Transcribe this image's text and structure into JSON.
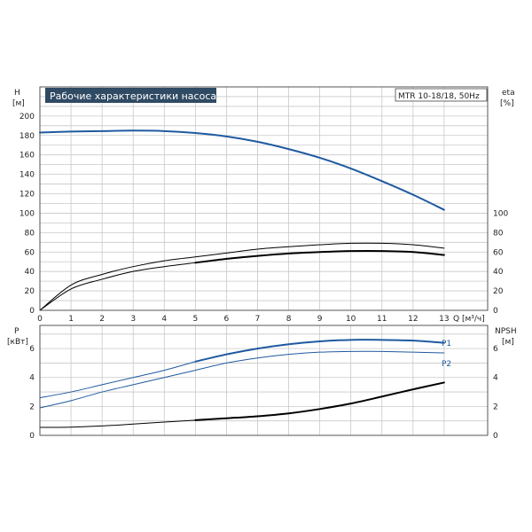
{
  "chart_data": {
    "type": "line",
    "title": "Рабочие характеристики насоса",
    "model": "MTR 10-18/18, 50Hz",
    "x": {
      "label": "Q [м³/ч]",
      "range": [
        0,
        14.4
      ],
      "ticks": [
        0,
        1,
        2,
        3,
        4,
        5,
        6,
        7,
        8,
        9,
        10,
        11,
        12,
        13
      ]
    },
    "top_panel": {
      "left_axis": {
        "label": "H",
        "unit": "[м]",
        "range": [
          0,
          230
        ],
        "ticks": [
          0,
          20,
          40,
          60,
          80,
          100,
          120,
          140,
          160,
          180,
          200
        ]
      },
      "right_axis": {
        "label": "eta",
        "unit": "[%]",
        "range": [
          0,
          100
        ],
        "ticks": [
          0,
          20,
          40,
          60,
          80,
          100
        ]
      },
      "series": [
        {
          "axis": "left",
          "color": "#1f5aa0",
          "width": 2,
          "x": [
            0,
            1,
            2,
            3,
            4,
            5,
            6,
            7,
            8,
            9,
            10,
            11,
            12,
            13
          ],
          "y": [
            183,
            184,
            184.5,
            185,
            184.5,
            182.5,
            179,
            173.5,
            166,
            157,
            146,
            133,
            119,
            103.5
          ]
        },
        {
          "axis": "right",
          "color": "#000000",
          "width": 1,
          "x": [
            0,
            1,
            2,
            3,
            4,
            5,
            6,
            7,
            8,
            9,
            10,
            11,
            12,
            13
          ],
          "y": [
            0,
            26,
            37,
            45,
            51,
            55,
            59,
            63,
            65.5,
            67.5,
            69,
            69,
            67.5,
            64
          ]
        },
        {
          "axis": "right",
          "color": "#000000",
          "width": 1,
          "x": [
            0,
            1,
            2,
            3,
            4,
            5
          ],
          "y": [
            0,
            22,
            32,
            40,
            45,
            49
          ]
        },
        {
          "axis": "right",
          "color": "#000000",
          "width": 2,
          "x": [
            5,
            6,
            7,
            8,
            9,
            10,
            11,
            12,
            13
          ],
          "y": [
            49,
            53,
            56,
            58.5,
            60,
            61,
            61,
            60,
            57
          ]
        }
      ]
    },
    "bottom_panel": {
      "left_axis": {
        "label": "P",
        "unit": "[кВт]",
        "range": [
          0,
          7.6
        ],
        "ticks": [
          0,
          2,
          4,
          6
        ]
      },
      "right_axis": {
        "label": "NPSH",
        "unit": "[м]",
        "range": [
          0,
          7.6
        ],
        "ticks": [
          0,
          2,
          4,
          6
        ]
      },
      "series": [
        {
          "name": "P1",
          "axis": "left",
          "color": "#1f5aa0",
          "width": 1,
          "x": [
            0,
            1,
            2,
            3,
            4,
            5
          ],
          "y": [
            2.6,
            3.0,
            3.5,
            4.0,
            4.5,
            5.1
          ]
        },
        {
          "axis": "left",
          "color": "#1f5aa0",
          "width": 2,
          "x": [
            5,
            6,
            7,
            8,
            9,
            10,
            11,
            12,
            13
          ],
          "y": [
            5.1,
            5.6,
            6.0,
            6.3,
            6.5,
            6.6,
            6.6,
            6.55,
            6.4
          ]
        },
        {
          "name": "P2",
          "axis": "left",
          "color": "#1f5aa0",
          "width": 1,
          "x": [
            0,
            1,
            2,
            3,
            4,
            5,
            6,
            7,
            8,
            9,
            10,
            11,
            12,
            13
          ],
          "y": [
            1.9,
            2.4,
            3.0,
            3.5,
            4.0,
            4.5,
            5.0,
            5.35,
            5.6,
            5.75,
            5.8,
            5.8,
            5.75,
            5.7
          ]
        },
        {
          "axis": "right",
          "color": "#000000",
          "width": 1,
          "x": [
            0,
            1,
            2,
            3,
            4,
            5
          ],
          "y": [
            0.55,
            0.57,
            0.65,
            0.78,
            0.92,
            1.05
          ]
        },
        {
          "axis": "right",
          "color": "#000000",
          "width": 2,
          "x": [
            5,
            6,
            7,
            8,
            9,
            10,
            11,
            12,
            13
          ],
          "y": [
            1.05,
            1.18,
            1.32,
            1.52,
            1.82,
            2.2,
            2.68,
            3.18,
            3.65
          ]
        }
      ],
      "curve_labels": [
        "P1",
        "P2"
      ]
    },
    "grid": true
  }
}
